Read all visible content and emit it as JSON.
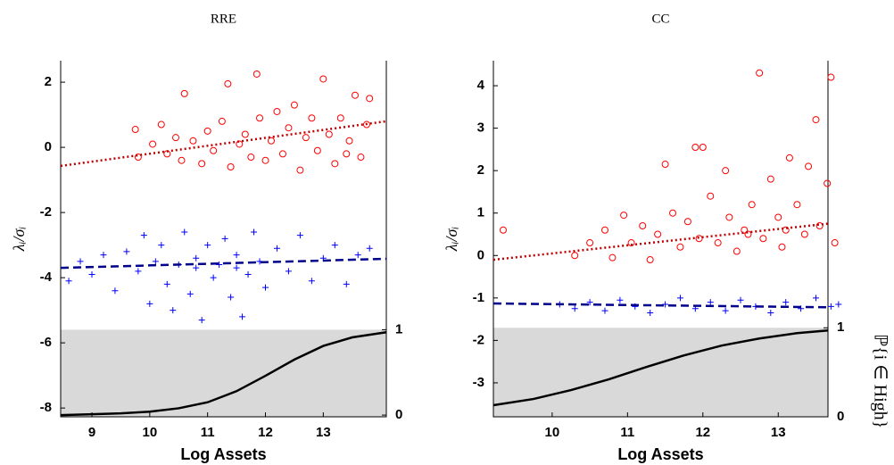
{
  "chart_data": [
    {
      "type": "scatter",
      "title": "RRE",
      "xlabel": "Log Assets",
      "ylabel": "λᵢ/σᵢ",
      "xlim": [
        8.46,
        14.09
      ],
      "xticks": [
        9,
        10,
        11,
        12,
        13
      ],
      "ylim": [
        -8.27,
        2.66
      ],
      "yticks": [
        -8,
        -6,
        -4,
        -2,
        0,
        2
      ],
      "y2lim": [
        -0.02,
        4.15
      ],
      "y2ticks": [
        0,
        1
      ],
      "shade_color": "#d9d9d9",
      "series": [
        {
          "color": "#ff0000",
          "marker": "circle",
          "x": [
            9.75,
            9.8,
            10.05,
            10.2,
            10.3,
            10.45,
            10.55,
            10.6,
            10.75,
            10.9,
            11,
            11.1,
            11.25,
            11.35,
            11.4,
            11.55,
            11.65,
            11.75,
            11.85,
            11.9,
            12,
            12.1,
            12.2,
            12.3,
            12.4,
            12.5,
            12.6,
            12.7,
            12.8,
            12.9,
            13,
            13.1,
            13.2,
            13.3,
            13.45,
            13.55,
            13.65,
            13.75,
            13.8,
            13.4
          ],
          "values": [
            0.55,
            -0.3,
            0.1,
            0.7,
            -0.2,
            0.3,
            -0.4,
            1.65,
            0.2,
            -0.5,
            0.5,
            -0.1,
            0.8,
            1.95,
            -0.6,
            0.1,
            0.4,
            -0.3,
            2.25,
            0.9,
            -0.4,
            0.2,
            1.1,
            -0.2,
            0.6,
            1.3,
            -0.7,
            0.3,
            0.9,
            -0.1,
            2.1,
            0.4,
            -0.5,
            0.9,
            0.2,
            1.6,
            -0.3,
            0.7,
            1.5,
            -0.2
          ]
        },
        {
          "color": "#0000ff",
          "marker": "plus",
          "x": [
            8.6,
            8.8,
            9.0,
            9.2,
            9.4,
            9.6,
            9.8,
            9.9,
            10.0,
            10.1,
            10.2,
            10.3,
            10.4,
            10.5,
            10.6,
            10.7,
            10.8,
            10.9,
            11.0,
            11.1,
            11.2,
            11.3,
            11.4,
            11.5,
            11.6,
            11.7,
            11.8,
            11.9,
            12.0,
            12.2,
            12.4,
            12.6,
            12.8,
            13.0,
            13.2,
            13.4,
            13.6,
            13.8,
            11.5,
            10.8
          ],
          "values": [
            -4.1,
            -3.5,
            -3.9,
            -3.3,
            -4.4,
            -3.2,
            -3.8,
            -2.7,
            -4.8,
            -3.5,
            -3.0,
            -4.2,
            -5.0,
            -3.6,
            -2.6,
            -4.5,
            -3.4,
            -5.3,
            -3.0,
            -4.0,
            -3.6,
            -2.8,
            -4.6,
            -3.3,
            -5.2,
            -3.9,
            -2.6,
            -3.5,
            -4.3,
            -3.1,
            -3.8,
            -2.7,
            -4.1,
            -3.4,
            -3.0,
            -4.2,
            -3.3,
            -3.1,
            -3.7,
            -3.7
          ]
        },
        {
          "color": "#c00000",
          "marker": "line",
          "style": "dotted",
          "x": [
            8.46,
            14.09
          ],
          "values": [
            -0.57,
            0.8
          ]
        },
        {
          "color": "#00008b",
          "marker": "line",
          "style": "dashed",
          "x": [
            8.46,
            14.09
          ],
          "values": [
            -3.7,
            -3.42
          ]
        },
        {
          "color": "#000000",
          "marker": "line",
          "style": "solid",
          "axis": "y2",
          "x": [
            8.46,
            9,
            9.5,
            10,
            10.5,
            11,
            11.5,
            12,
            12.5,
            13,
            13.5,
            14.09
          ],
          "values": [
            0,
            0.01,
            0.02,
            0.04,
            0.08,
            0.15,
            0.28,
            0.46,
            0.65,
            0.81,
            0.91,
            0.97
          ]
        }
      ]
    },
    {
      "type": "scatter",
      "title": "CC",
      "xlabel": "Log Assets",
      "ylabel": "λᵢ/σᵢ",
      "y2label": "ℙ{i ∈ High}",
      "xlim": [
        9.22,
        13.66
      ],
      "xticks": [
        10,
        11,
        12,
        13
      ],
      "ylim": [
        -3.8,
        4.59
      ],
      "yticks": [
        -3,
        -2,
        -1,
        0,
        1,
        2,
        3,
        4
      ],
      "y2lim": [
        0,
        4.0
      ],
      "y2ticks": [
        0,
        1
      ],
      "shade_color": "#d9d9d9",
      "series": [
        {
          "color": "#ff0000",
          "marker": "circle",
          "x": [
            9.35,
            10.3,
            10.5,
            10.7,
            10.8,
            10.95,
            11.05,
            11.2,
            11.3,
            11.4,
            11.5,
            11.6,
            11.7,
            11.8,
            11.9,
            11.95,
            12.0,
            12.1,
            12.2,
            12.3,
            12.35,
            12.45,
            12.55,
            12.65,
            12.75,
            12.8,
            12.9,
            13.0,
            13.05,
            13.15,
            13.25,
            13.35,
            13.4,
            13.5,
            13.55,
            13.65,
            13.7,
            13.75,
            12.6,
            13.1
          ],
          "values": [
            0.6,
            0.0,
            0.3,
            0.6,
            -0.05,
            0.95,
            0.3,
            0.7,
            -0.1,
            0.5,
            2.15,
            1.0,
            0.2,
            0.8,
            2.55,
            0.4,
            2.55,
            1.4,
            0.3,
            2.0,
            0.9,
            0.1,
            0.6,
            1.2,
            4.3,
            0.4,
            1.8,
            0.9,
            0.2,
            2.3,
            1.2,
            0.5,
            2.1,
            3.2,
            0.7,
            1.7,
            4.2,
            0.3,
            0.5,
            0.6
          ]
        },
        {
          "color": "#0000ff",
          "marker": "plus",
          "x": [
            10.1,
            10.3,
            10.5,
            10.7,
            10.9,
            11.1,
            11.3,
            11.5,
            11.7,
            11.9,
            12.1,
            12.3,
            12.5,
            12.7,
            12.9,
            13.1,
            13.3,
            13.5,
            13.7,
            13.8
          ],
          "values": [
            -1.15,
            -1.25,
            -1.1,
            -1.3,
            -1.05,
            -1.2,
            -1.35,
            -1.15,
            -1.0,
            -1.25,
            -1.1,
            -1.3,
            -1.05,
            -1.2,
            -1.35,
            -1.1,
            -1.25,
            -1.0,
            -1.2,
            -1.15
          ]
        },
        {
          "color": "#c00000",
          "marker": "line",
          "style": "dotted",
          "x": [
            9.22,
            13.66
          ],
          "values": [
            -0.1,
            0.75
          ]
        },
        {
          "color": "#00008b",
          "marker": "line",
          "style": "dashed",
          "x": [
            9.22,
            13.66
          ],
          "values": [
            -1.13,
            -1.22
          ]
        },
        {
          "color": "#000000",
          "marker": "line",
          "style": "solid",
          "axis": "y2",
          "x": [
            9.22,
            9.75,
            10.25,
            10.75,
            11.25,
            11.75,
            12.25,
            12.75,
            13.25,
            13.66
          ],
          "values": [
            0.13,
            0.2,
            0.3,
            0.42,
            0.56,
            0.69,
            0.8,
            0.88,
            0.94,
            0.97
          ]
        }
      ]
    }
  ]
}
